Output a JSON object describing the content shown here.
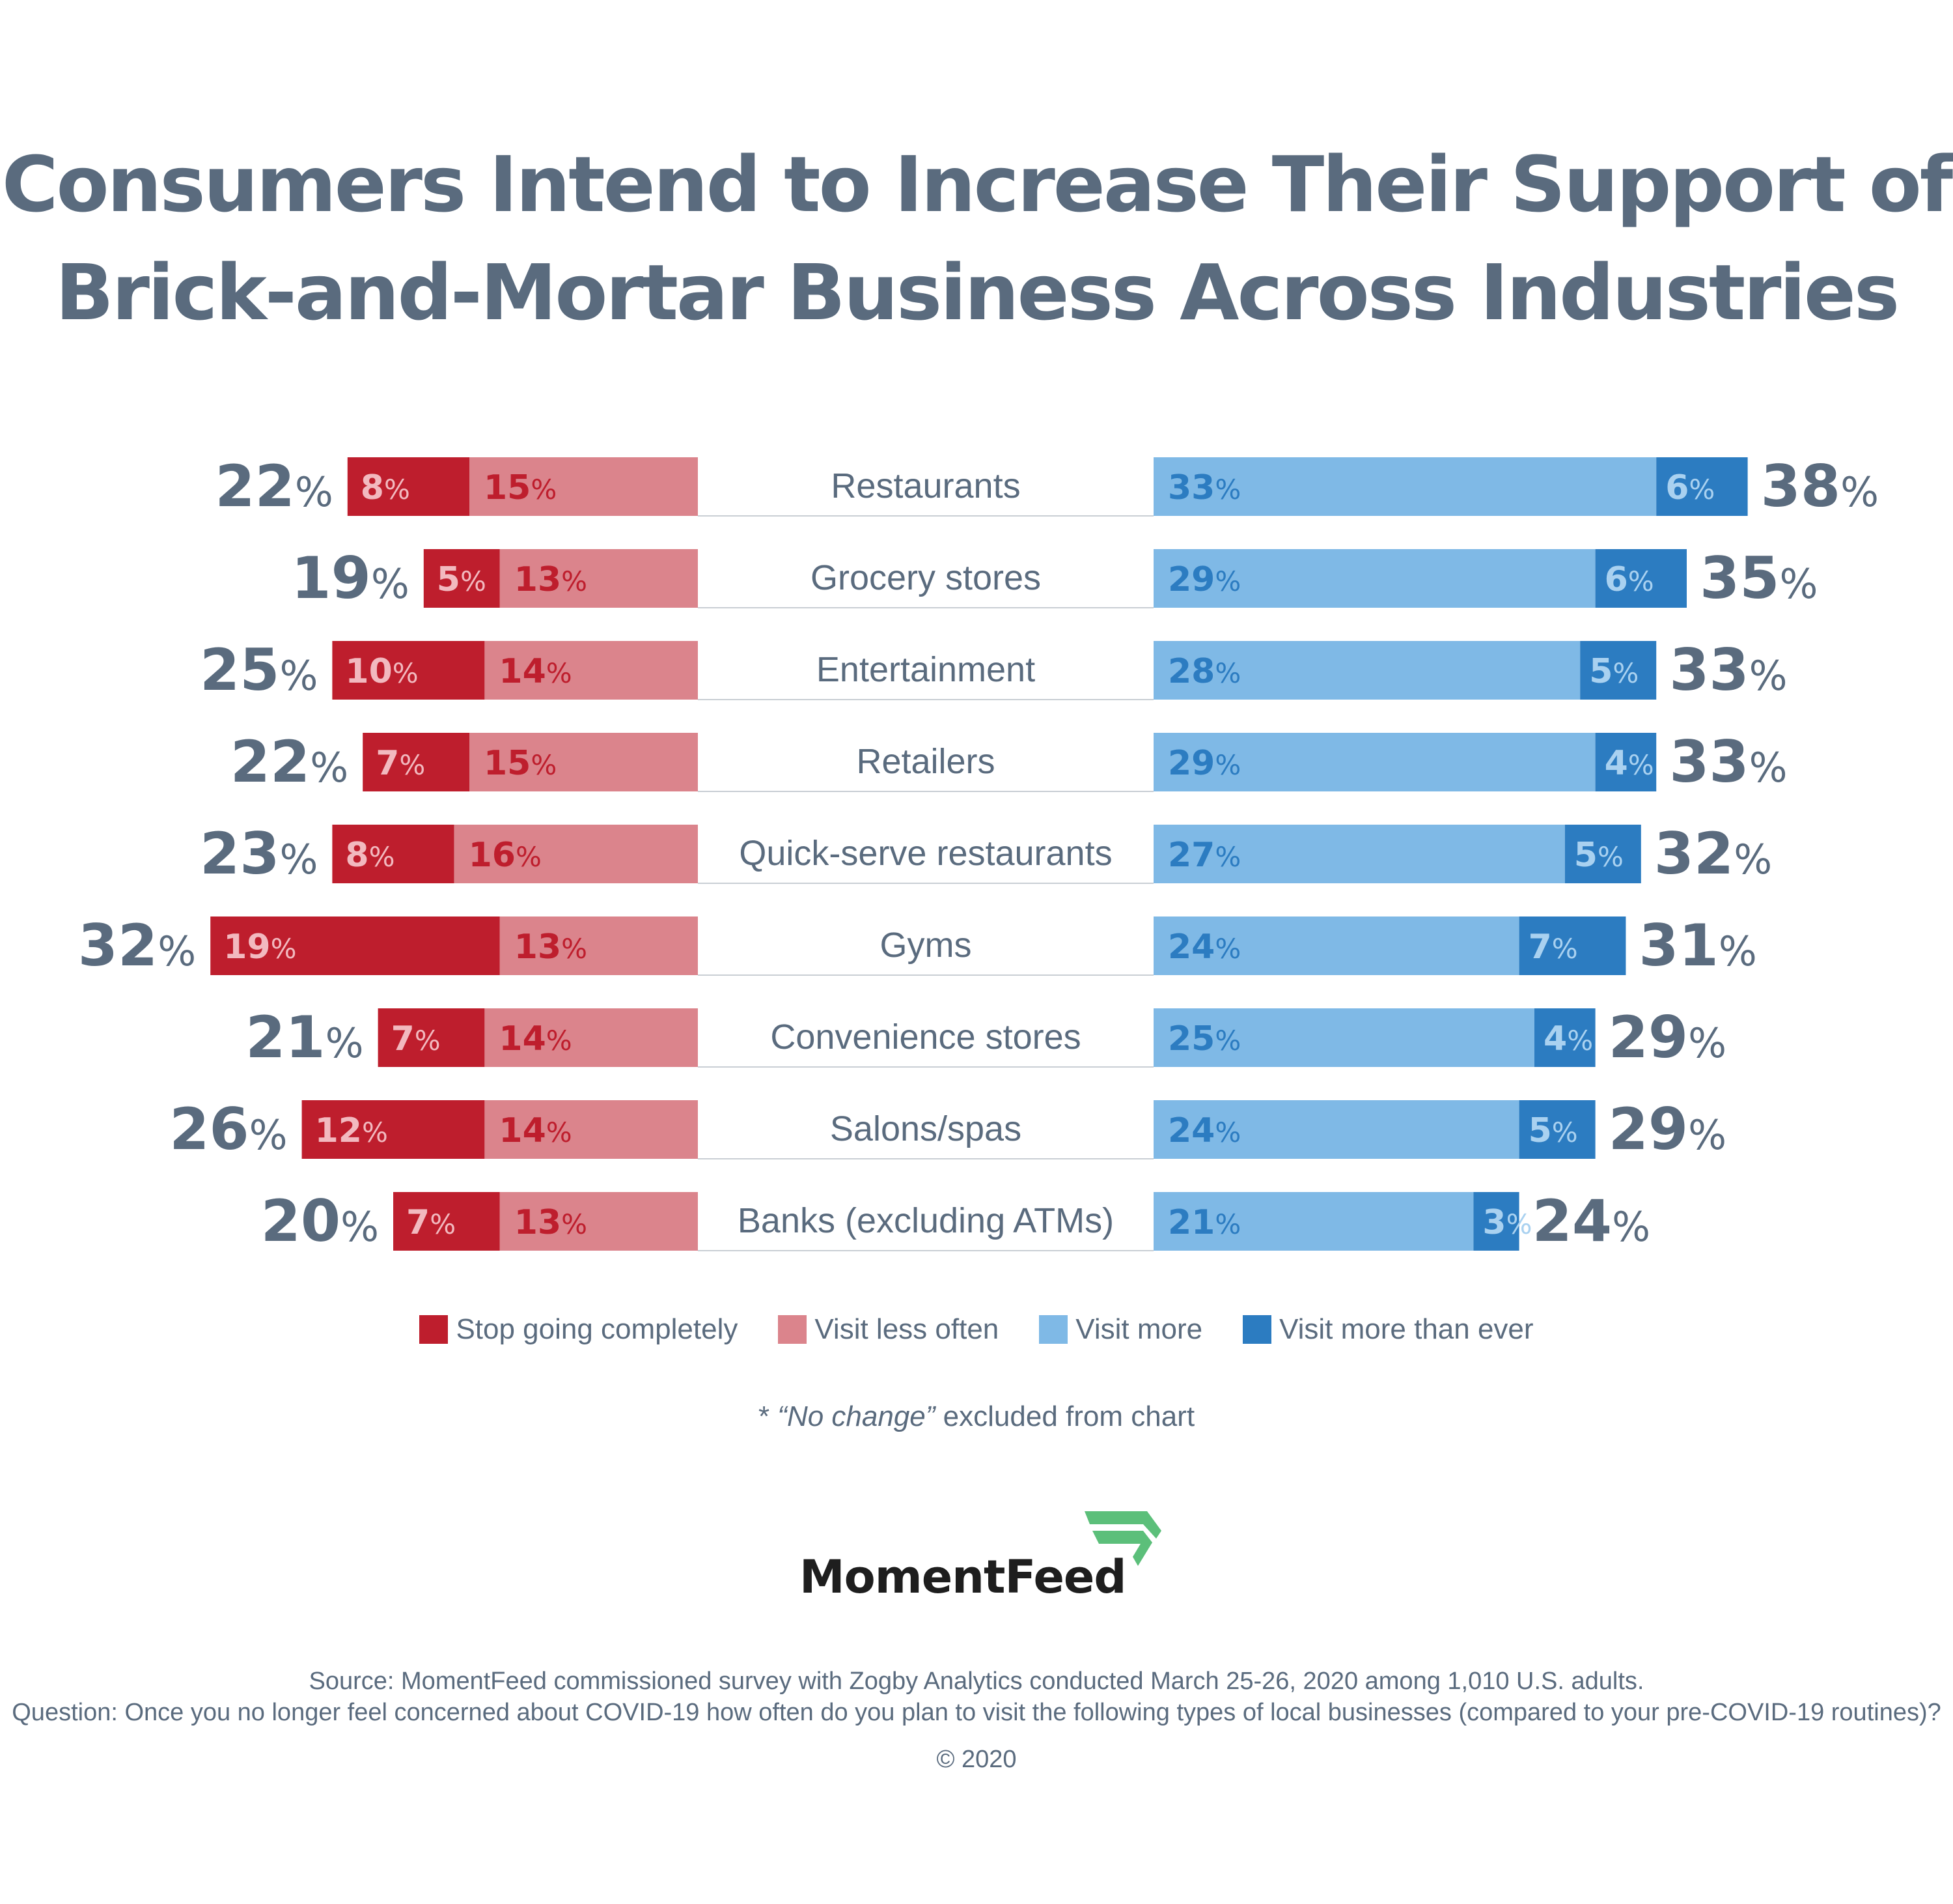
{
  "title": {
    "line1": "Consumers Intend to Increase Their Support of",
    "line2": "Brick-and-Mortar Business Across Industries"
  },
  "colors": {
    "stop": "#be1e2d",
    "less": "#db848c",
    "more": "#7fb9e6",
    "ever": "#2c7cc1",
    "text": "#5a6b7e",
    "stop_label": "#f2b9bf",
    "less_label": "#be1e2d",
    "more_label": "#2c7cc1",
    "ever_label": "#a9d1f0"
  },
  "chart_data": {
    "type": "bar",
    "orientation": "horizontal-diverging",
    "unit": "%",
    "categories": [
      "Restaurants",
      "Grocery stores",
      "Entertainment",
      "Retailers",
      "Quick-serve restaurants",
      "Gyms",
      "Convenience stores",
      "Salons/spas",
      "Banks (excluding ATMs)"
    ],
    "series": [
      {
        "name": "Stop going completely",
        "side": "negative",
        "values": [
          8,
          5,
          10,
          7,
          8,
          19,
          7,
          12,
          7
        ]
      },
      {
        "name": "Visit less often",
        "side": "negative",
        "values": [
          15,
          13,
          14,
          15,
          16,
          13,
          14,
          14,
          13
        ]
      },
      {
        "name": "Visit more",
        "side": "positive",
        "values": [
          33,
          29,
          28,
          29,
          27,
          24,
          25,
          24,
          21
        ]
      },
      {
        "name": "Visit more than ever",
        "side": "positive",
        "values": [
          6,
          6,
          5,
          4,
          5,
          7,
          4,
          5,
          3
        ]
      }
    ],
    "negative_totals": [
      22,
      19,
      25,
      22,
      23,
      32,
      21,
      26,
      20
    ],
    "positive_totals": [
      38,
      35,
      33,
      33,
      32,
      31,
      29,
      29,
      24
    ]
  },
  "legend": [
    {
      "label": "Stop going completely",
      "color": "#be1e2d"
    },
    {
      "label": "Visit less often",
      "color": "#db848c"
    },
    {
      "label": "Visit more",
      "color": "#7fb9e6"
    },
    {
      "label": "Visit more than ever",
      "color": "#2c7cc1"
    }
  ],
  "footnote": {
    "prefix": "* ",
    "quoted": "“No change”",
    "suffix": " excluded from chart"
  },
  "logo": {
    "text": "MomentFeed",
    "color": "#5cbf7a"
  },
  "source": {
    "line1": "Source: MomentFeed commissioned survey with Zogby Analytics conducted March 25-26, 2020 among 1,010 U.S. adults.",
    "line2": "Question: Once you no longer feel concerned about COVID-19 how often do you plan to visit the following types of local businesses (compared to your pre-COVID-19 routines)?"
  },
  "copyright": "© 2020"
}
